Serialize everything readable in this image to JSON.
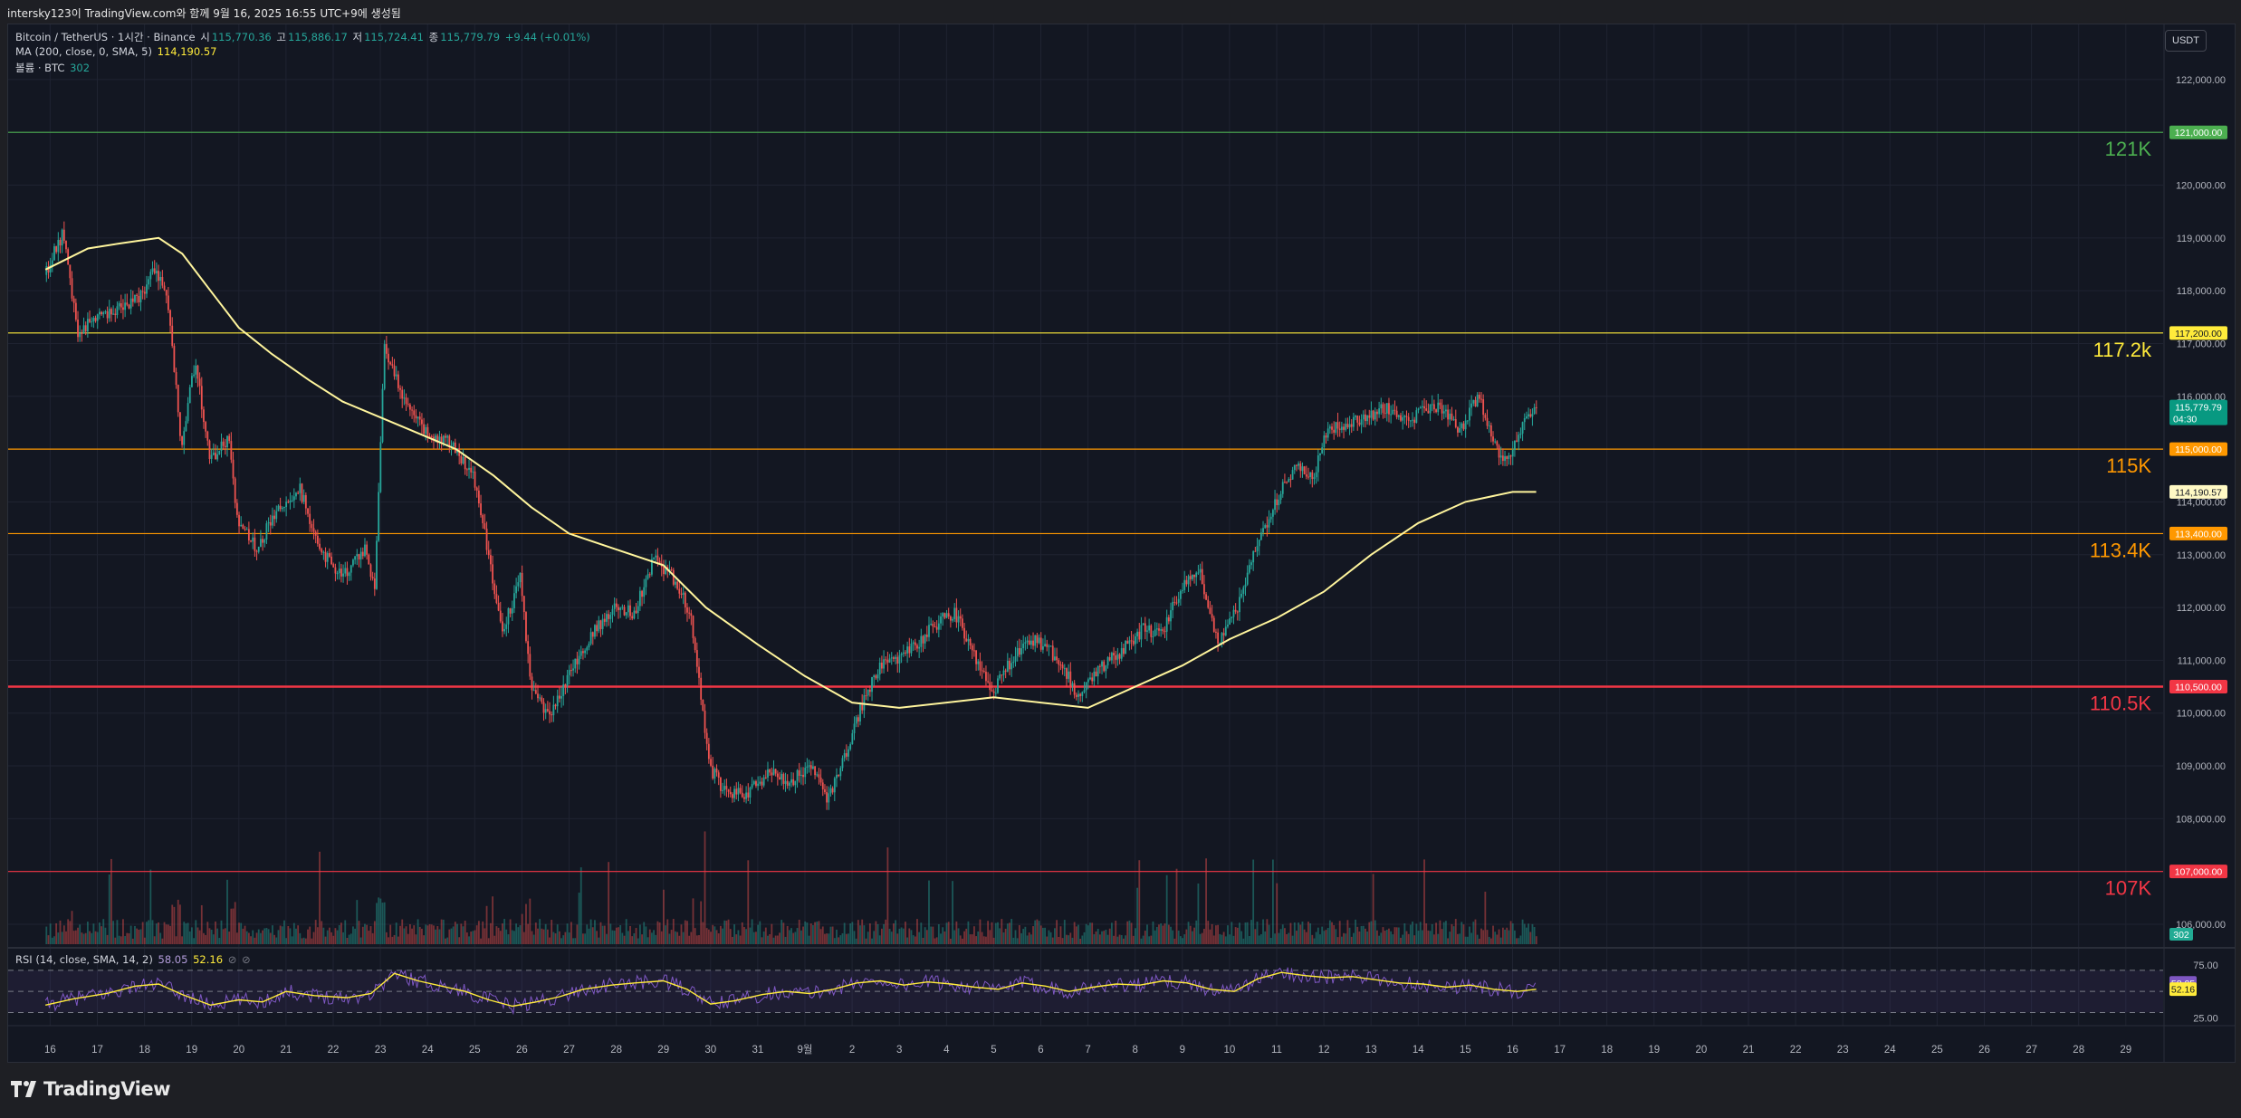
{
  "header": {
    "snapshot_title": "intersky123이 TradingView.com와 함께 9월 16, 2025 16:55 UTC+9에 생성됨"
  },
  "legend": {
    "symbol": "Bitcoin / TetherUS · 1시간 · Binance",
    "open_label": "시",
    "open": "115,770.36",
    "high_label": "고",
    "high": "115,886.17",
    "low_label": "저",
    "low": "115,724.41",
    "close_label": "종",
    "close": "115,779.79",
    "change": "+9.44 (+0.01%)",
    "ma_label": "MA (200, close, 0, SMA, 5)",
    "ma_value": "114,190.57",
    "volume_label": "볼륨 · BTC",
    "volume_value": "302"
  },
  "rsi_legend": {
    "label": "RSI (14, close, SMA, 14, 2)",
    "rsi": "58.05",
    "rsi_ma": "52.16"
  },
  "currency_button": "USDT",
  "brand": "TradingView",
  "colors": {
    "background": "#131722",
    "up": "#26a69a",
    "down": "#ef5350",
    "ma": "#fff59d",
    "rsi": "#7e57c2",
    "rsi_ma": "#ffeb3b",
    "level_121k": "#4caf50",
    "level_117_2k": "#ffeb3b",
    "level_115k": "#ff9800",
    "level_113_4k": "#ff9800",
    "level_110_5k": "#f23645",
    "level_107k": "#f23645"
  },
  "chart_data": {
    "type": "candlestick",
    "symbol": "BTCUSDT",
    "interval": "1시간",
    "ylim": [
      105500,
      123000
    ],
    "y_ticks": [
      106000,
      107000,
      108000,
      109000,
      110000,
      111000,
      112000,
      113000,
      114000,
      115000,
      116000,
      117000,
      118000,
      119000,
      120000,
      121000,
      122000
    ],
    "y_tick_labels": [
      "106,000.00",
      "107,000.00",
      "108,000.00",
      "109,000.00",
      "110,000.00",
      "111,000.00",
      "112,000.00",
      "113,000.00",
      "114,000.00",
      "115,000.00",
      "116,000.00",
      "117,000.00",
      "118,000.00",
      "119,000.00",
      "120,000.00",
      "121,000.00",
      "122,000.00"
    ],
    "x_tick_labels": [
      "16",
      "17",
      "18",
      "19",
      "20",
      "21",
      "22",
      "23",
      "24",
      "25",
      "26",
      "27",
      "28",
      "29",
      "30",
      "31",
      "9월",
      "2",
      "3",
      "4",
      "5",
      "6",
      "7",
      "8",
      "9",
      "10",
      "11",
      "12",
      "13",
      "14",
      "15",
      "16",
      "17",
      "18",
      "19",
      "20",
      "21",
      "22",
      "23",
      "24",
      "25",
      "26",
      "27",
      "28",
      "29"
    ],
    "x_tick_days": [
      16,
      17,
      18,
      19,
      20,
      21,
      22,
      23,
      24,
      25,
      26,
      27,
      28,
      29,
      30,
      31,
      32,
      33,
      34,
      35,
      36,
      37,
      38,
      39,
      40,
      41,
      42,
      43,
      44,
      45,
      46,
      47,
      48,
      49,
      50,
      51,
      52,
      53,
      54,
      55,
      56,
      57,
      58,
      59,
      60
    ],
    "price_path": [
      [
        15.9,
        118300
      ],
      [
        16.3,
        119100
      ],
      [
        16.6,
        117200
      ],
      [
        17.0,
        117500
      ],
      [
        17.7,
        117700
      ],
      [
        18.0,
        118000
      ],
      [
        18.2,
        118400
      ],
      [
        18.5,
        117900
      ],
      [
        18.8,
        115100
      ],
      [
        19.1,
        116700
      ],
      [
        19.4,
        114800
      ],
      [
        19.8,
        115200
      ],
      [
        20.0,
        113600
      ],
      [
        20.4,
        113100
      ],
      [
        20.8,
        113800
      ],
      [
        21.3,
        114300
      ],
      [
        21.7,
        113100
      ],
      [
        22.2,
        112600
      ],
      [
        22.7,
        113100
      ],
      [
        22.9,
        112300
      ],
      [
        23.1,
        117000
      ],
      [
        23.5,
        115900
      ],
      [
        24.0,
        115300
      ],
      [
        24.5,
        115100
      ],
      [
        25.0,
        114500
      ],
      [
        25.3,
        113100
      ],
      [
        25.6,
        111500
      ],
      [
        26.0,
        112600
      ],
      [
        26.2,
        110500
      ],
      [
        26.6,
        109900
      ],
      [
        27.0,
        110700
      ],
      [
        27.5,
        111500
      ],
      [
        28.0,
        112000
      ],
      [
        28.4,
        111900
      ],
      [
        28.8,
        112900
      ],
      [
        29.2,
        112600
      ],
      [
        29.6,
        111900
      ],
      [
        30.0,
        109000
      ],
      [
        30.3,
        108500
      ],
      [
        30.8,
        108500
      ],
      [
        31.3,
        108900
      ],
      [
        31.7,
        108700
      ],
      [
        32.1,
        109000
      ],
      [
        32.5,
        108400
      ],
      [
        32.8,
        109000
      ],
      [
        33.2,
        110100
      ],
      [
        33.6,
        110900
      ],
      [
        34.0,
        111000
      ],
      [
        34.4,
        111300
      ],
      [
        34.8,
        111700
      ],
      [
        35.2,
        111900
      ],
      [
        35.6,
        111100
      ],
      [
        36.0,
        110400
      ],
      [
        36.4,
        111000
      ],
      [
        36.8,
        111400
      ],
      [
        37.2,
        111200
      ],
      [
        37.5,
        110900
      ],
      [
        37.8,
        110300
      ],
      [
        38.1,
        110700
      ],
      [
        38.5,
        111000
      ],
      [
        38.9,
        111300
      ],
      [
        39.2,
        111600
      ],
      [
        39.6,
        111500
      ],
      [
        40.0,
        112400
      ],
      [
        40.4,
        112600
      ],
      [
        40.8,
        111300
      ],
      [
        41.2,
        112000
      ],
      [
        41.6,
        113200
      ],
      [
        42.0,
        114000
      ],
      [
        42.4,
        114700
      ],
      [
        42.8,
        114500
      ],
      [
        43.1,
        115400
      ],
      [
        43.5,
        115500
      ],
      [
        43.9,
        115600
      ],
      [
        44.3,
        115800
      ],
      [
        44.7,
        115500
      ],
      [
        45.1,
        115700
      ],
      [
        45.5,
        115800
      ],
      [
        45.9,
        115300
      ],
      [
        46.3,
        116000
      ],
      [
        46.6,
        115100
      ],
      [
        46.9,
        114700
      ],
      [
        47.3,
        115600
      ],
      [
        47.5,
        115780
      ]
    ],
    "ma200": [
      [
        15.9,
        118400
      ],
      [
        16.8,
        118800
      ],
      [
        17.5,
        118900
      ],
      [
        18.3,
        119000
      ],
      [
        18.8,
        118700
      ],
      [
        19.4,
        118000
      ],
      [
        20.0,
        117300
      ],
      [
        20.7,
        116800
      ],
      [
        21.5,
        116300
      ],
      [
        22.2,
        115900
      ],
      [
        23.0,
        115600
      ],
      [
        23.8,
        115300
      ],
      [
        24.6,
        115000
      ],
      [
        25.4,
        114500
      ],
      [
        26.2,
        113900
      ],
      [
        27.0,
        113400
      ],
      [
        28.0,
        113100
      ],
      [
        29.0,
        112800
      ],
      [
        29.9,
        112000
      ],
      [
        31.0,
        111300
      ],
      [
        32.0,
        110700
      ],
      [
        33.0,
        110200
      ],
      [
        34.0,
        110100
      ],
      [
        35.0,
        110200
      ],
      [
        36.0,
        110300
      ],
      [
        37.0,
        110200
      ],
      [
        38.0,
        110100
      ],
      [
        39.0,
        110500
      ],
      [
        40.0,
        110900
      ],
      [
        41.0,
        111400
      ],
      [
        42.0,
        111800
      ],
      [
        43.0,
        112300
      ],
      [
        44.0,
        113000
      ],
      [
        45.0,
        113600
      ],
      [
        46.0,
        114000
      ],
      [
        47.0,
        114190
      ],
      [
        47.5,
        114190
      ]
    ],
    "levels": [
      {
        "label": "121K",
        "price": 121000,
        "price_label": "121,000.00"
      },
      {
        "label": "117.2k",
        "price": 117200,
        "price_label": "117,200.00"
      },
      {
        "label": "115K",
        "price": 115000,
        "price_label": "115,000.00"
      },
      {
        "label": "113.4K",
        "price": 113400,
        "price_label": "113,400.00"
      },
      {
        "label": "110.5K",
        "price": 110500,
        "price_label": "110,500.00"
      },
      {
        "label": "107K",
        "price": 107000,
        "price_label": "107,000.00"
      }
    ],
    "last_price": {
      "value": 115779.79,
      "label": "115,779.79",
      "countdown": "04:30"
    },
    "ma_last": {
      "value": 114190.57,
      "label": "114,190.57"
    },
    "volume_last": {
      "value": 302,
      "label": "302"
    },
    "rsi": {
      "ylim": [
        20,
        80
      ],
      "y_tick_labels": [
        "75.00",
        "25.00"
      ],
      "y_ticks": [
        75,
        25
      ],
      "band": [
        30,
        70
      ],
      "mid": 50,
      "last_rsi": 58.05,
      "last_rsi_label": "58.05",
      "last_ma": 52.16,
      "last_ma_label": "52.16",
      "ma_path": [
        [
          15.9,
          37
        ],
        [
          16.5,
          43
        ],
        [
          17.2,
          48
        ],
        [
          17.8,
          55
        ],
        [
          18.3,
          57
        ],
        [
          18.8,
          47
        ],
        [
          19.4,
          37
        ],
        [
          20.0,
          42
        ],
        [
          20.5,
          40
        ],
        [
          21.0,
          50
        ],
        [
          21.6,
          46
        ],
        [
          22.3,
          44
        ],
        [
          22.8,
          48
        ],
        [
          23.3,
          67
        ],
        [
          23.8,
          60
        ],
        [
          24.3,
          55
        ],
        [
          24.8,
          50
        ],
        [
          25.3,
          42
        ],
        [
          25.8,
          36
        ],
        [
          26.3,
          40
        ],
        [
          26.8,
          45
        ],
        [
          27.3,
          52
        ],
        [
          27.9,
          56
        ],
        [
          28.4,
          58
        ],
        [
          29.0,
          60
        ],
        [
          29.5,
          52
        ],
        [
          30.0,
          38
        ],
        [
          30.5,
          41
        ],
        [
          31.1,
          47
        ],
        [
          31.6,
          50
        ],
        [
          32.1,
          48
        ],
        [
          32.6,
          52
        ],
        [
          33.1,
          58
        ],
        [
          33.6,
          60
        ],
        [
          34.1,
          56
        ],
        [
          34.6,
          59
        ],
        [
          35.1,
          57
        ],
        [
          35.6,
          54
        ],
        [
          36.1,
          52
        ],
        [
          36.6,
          58
        ],
        [
          37.1,
          55
        ],
        [
          37.6,
          50
        ],
        [
          38.1,
          54
        ],
        [
          38.6,
          57
        ],
        [
          39.1,
          56
        ],
        [
          39.6,
          60
        ],
        [
          40.1,
          58
        ],
        [
          40.6,
          52
        ],
        [
          41.1,
          50
        ],
        [
          41.6,
          62
        ],
        [
          42.1,
          68
        ],
        [
          42.6,
          65
        ],
        [
          43.1,
          63
        ],
        [
          43.6,
          64
        ],
        [
          44.1,
          61
        ],
        [
          44.6,
          58
        ],
        [
          45.1,
          57
        ],
        [
          45.6,
          54
        ],
        [
          46.1,
          56
        ],
        [
          46.6,
          52
        ],
        [
          47.1,
          50
        ],
        [
          47.5,
          52
        ]
      ]
    }
  }
}
